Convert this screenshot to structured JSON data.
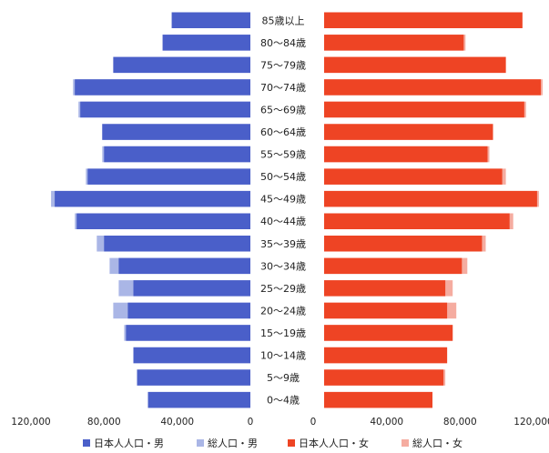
{
  "chart_data": {
    "type": "bar",
    "categories": [
      "85歳以上",
      "80～84歳",
      "75～79歳",
      "70～74歳",
      "65～69歳",
      "60～64歳",
      "55～59歳",
      "50～54歳",
      "45～49歳",
      "40～44歳",
      "35～39歳",
      "30～34歳",
      "25～29歳",
      "20～24歳",
      "15～19歳",
      "10～14歳",
      "5～9歳",
      "0～4歳"
    ],
    "series": [
      {
        "name": "日本人人口・男",
        "color": "#4a5fc9",
        "side": "left",
        "values": [
          43000,
          48000,
          75000,
          96000,
          93000,
          81000,
          80000,
          89000,
          107000,
          95000,
          80000,
          72000,
          64000,
          67000,
          68000,
          64000,
          62000,
          56000
        ]
      },
      {
        "name": "総人口・男",
        "color": "#aab6e6",
        "side": "left",
        "values": [
          43000,
          48000,
          75000,
          97000,
          94000,
          81000,
          81000,
          90000,
          109000,
          96000,
          84000,
          77000,
          72000,
          75000,
          69000,
          64000,
          62000,
          56000
        ]
      },
      {
        "name": "日本人人口・女",
        "color": "#ee4424",
        "side": "right",
        "values": [
          108000,
          76000,
          99000,
          118000,
          109000,
          92000,
          89000,
          97000,
          116000,
          101000,
          86000,
          75000,
          66000,
          67000,
          70000,
          67000,
          65000,
          59000
        ]
      },
      {
        "name": "総人口・女",
        "color": "#f5aca0",
        "side": "right",
        "values": [
          108000,
          77000,
          99000,
          119000,
          110000,
          92000,
          90000,
          99000,
          117000,
          103000,
          88000,
          78000,
          70000,
          72000,
          70000,
          67000,
          66000,
          59000
        ]
      }
    ],
    "left_ticks": [
      "120,000",
      "80,000",
      "40,000",
      "0"
    ],
    "right_ticks": [
      "0",
      "40,000",
      "80,000",
      "120,000"
    ],
    "xlim": [
      0,
      120000
    ],
    "legend_position": "bottom"
  }
}
